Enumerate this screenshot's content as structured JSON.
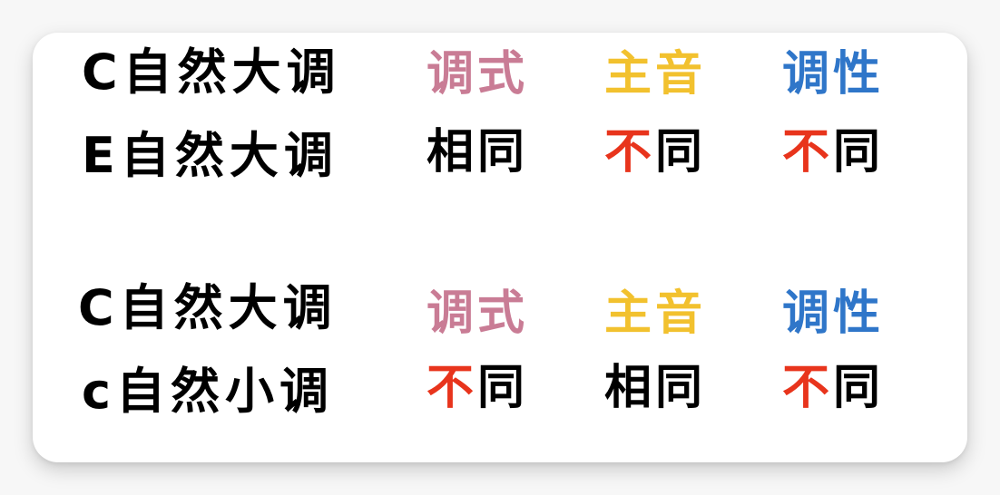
{
  "colors": {
    "mode": "#c97c95",
    "tonic": "#f2c12e",
    "tonality": "#2f76c9",
    "different": "#e8341c",
    "same": "#000000"
  },
  "groups": [
    {
      "row1": {
        "key": "C自然大调",
        "mode_label": "调式",
        "tonic_label": "主音",
        "tonality_label": "调性"
      },
      "row2": {
        "key": "E自然大调",
        "mode": {
          "diff": "",
          "rest": "相同"
        },
        "tonic": {
          "diff": "不",
          "rest": "同"
        },
        "tonality": {
          "diff": "不",
          "rest": "同"
        }
      }
    },
    {
      "row1": {
        "key": "C自然大调",
        "mode_label": "调式",
        "tonic_label": "主音",
        "tonality_label": "调性"
      },
      "row2": {
        "key": "c自然小调",
        "mode": {
          "diff": "不",
          "rest": "同"
        },
        "tonic": {
          "diff": "",
          "rest": "相同"
        },
        "tonality": {
          "diff": "不",
          "rest": "同"
        }
      }
    }
  ]
}
